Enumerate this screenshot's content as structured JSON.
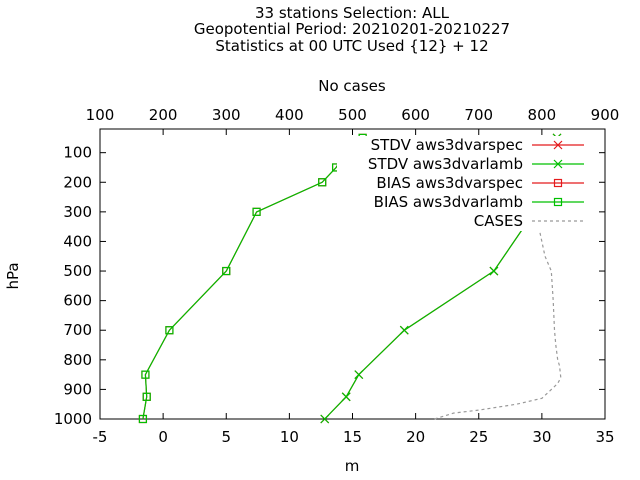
{
  "title_lines": [
    "33 stations Selection: ALL",
    "Geopotential  Period: 20210201-20210227",
    "Statistics at 00 UTC  Used {12} + 12"
  ],
  "chart_data": {
    "type": "line",
    "xlabel": "m",
    "ylabel": "hPa",
    "x2label": "No cases",
    "xlim": [
      -5,
      35
    ],
    "x2lim": [
      100,
      900
    ],
    "ylim": [
      1000,
      20
    ],
    "x_ticks": [
      -5,
      0,
      5,
      10,
      15,
      20,
      25,
      30,
      35
    ],
    "x2_ticks": [
      100,
      200,
      300,
      400,
      500,
      600,
      700,
      800,
      900
    ],
    "y_ticks": [
      100,
      200,
      300,
      400,
      500,
      600,
      700,
      800,
      900,
      1000
    ],
    "legend_position": "top-right",
    "series": [
      {
        "name": "STDV aws3dvarspec",
        "color": "#e41a1c",
        "marker": "x",
        "axis": "x",
        "points": [
          [
            12.8,
            1000
          ],
          [
            14.5,
            925
          ],
          [
            15.5,
            850
          ],
          [
            19.1,
            700
          ],
          [
            26.2,
            500
          ],
          [
            29.4,
            300
          ],
          [
            31.5,
            200
          ],
          [
            28.5,
            150
          ],
          [
            30.5,
            100
          ],
          [
            31.2,
            50
          ]
        ]
      },
      {
        "name": "STDV aws3dvarlamb",
        "color": "#00c000",
        "marker": "x",
        "axis": "x",
        "points": [
          [
            12.8,
            1000
          ],
          [
            14.5,
            925
          ],
          [
            15.5,
            850
          ],
          [
            19.1,
            700
          ],
          [
            26.2,
            500
          ],
          [
            29.4,
            300
          ],
          [
            31.5,
            200
          ],
          [
            28.5,
            150
          ],
          [
            30.5,
            100
          ],
          [
            31.2,
            50
          ]
        ]
      },
      {
        "name": "BIAS aws3dvarspec",
        "color": "#e41a1c",
        "marker": "square",
        "axis": "x",
        "points": [
          [
            -1.6,
            1000
          ],
          [
            -1.3,
            925
          ],
          [
            -1.4,
            850
          ],
          [
            0.5,
            700
          ],
          [
            5.0,
            500
          ],
          [
            7.4,
            300
          ],
          [
            12.6,
            200
          ],
          [
            13.7,
            150
          ],
          [
            14.4,
            100
          ],
          [
            15.8,
            50
          ]
        ]
      },
      {
        "name": "BIAS aws3dvarlamb",
        "color": "#00c000",
        "marker": "square",
        "axis": "x",
        "points": [
          [
            -1.6,
            1000
          ],
          [
            -1.3,
            925
          ],
          [
            -1.4,
            850
          ],
          [
            0.5,
            700
          ],
          [
            5.0,
            500
          ],
          [
            7.4,
            300
          ],
          [
            12.6,
            200
          ],
          [
            13.7,
            150
          ],
          [
            14.4,
            100
          ],
          [
            15.8,
            50
          ]
        ]
      },
      {
        "name": "CASES",
        "color": "#999999",
        "marker": "none",
        "dashed": true,
        "axis": "x2",
        "points": [
          [
            630,
            1000
          ],
          [
            660,
            980
          ],
          [
            700,
            970
          ],
          [
            760,
            950
          ],
          [
            800,
            930
          ],
          [
            810,
            910
          ],
          [
            825,
            880
          ],
          [
            830,
            860
          ],
          [
            828,
            820
          ],
          [
            825,
            800
          ],
          [
            822,
            750
          ],
          [
            820,
            700
          ],
          [
            818,
            600
          ],
          [
            815,
            500
          ],
          [
            805,
            450
          ],
          [
            795,
            350
          ],
          [
            790,
            300
          ]
        ]
      }
    ]
  }
}
